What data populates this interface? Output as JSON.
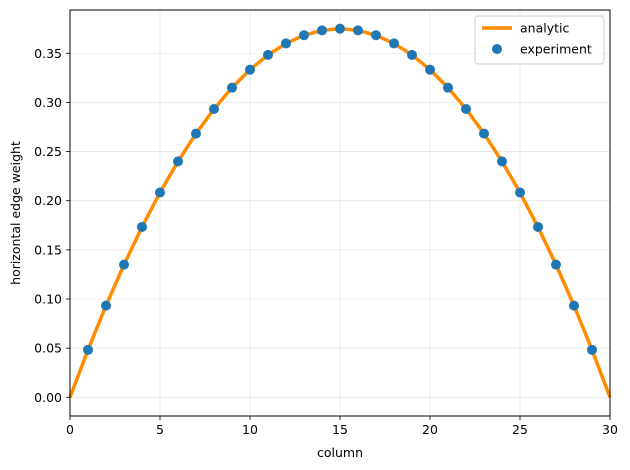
{
  "chart_data": {
    "type": "line",
    "xlabel": "column",
    "ylabel": "horizontal edge weight",
    "xlim": [
      0,
      30
    ],
    "ylim": [
      -0.019,
      0.394
    ],
    "xticks": [
      0,
      5,
      10,
      15,
      20,
      25,
      30
    ],
    "yticks": [
      0.0,
      0.05,
      0.1,
      0.15,
      0.2,
      0.25,
      0.3,
      0.35
    ],
    "grid": true,
    "legend_position": "top-right",
    "colors": {
      "analytic": "#ff8c00",
      "experiment": "#1f77b4"
    },
    "series": [
      {
        "name": "analytic",
        "kind": "line",
        "x": [
          0,
          1,
          2,
          3,
          4,
          5,
          6,
          7,
          8,
          9,
          10,
          11,
          12,
          13,
          14,
          15,
          16,
          17,
          18,
          19,
          20,
          21,
          22,
          23,
          24,
          25,
          26,
          27,
          28,
          29,
          30
        ],
        "y": [
          0.0,
          0.0483,
          0.0933,
          0.135,
          0.1733,
          0.2083,
          0.24,
          0.2683,
          0.2933,
          0.315,
          0.3333,
          0.3483,
          0.36,
          0.3683,
          0.3733,
          0.375,
          0.3733,
          0.3683,
          0.36,
          0.3483,
          0.3333,
          0.315,
          0.2933,
          0.2683,
          0.24,
          0.2083,
          0.1733,
          0.135,
          0.0933,
          0.0483,
          0.0
        ]
      },
      {
        "name": "experiment",
        "kind": "scatter",
        "x": [
          1,
          2,
          3,
          4,
          5,
          6,
          7,
          8,
          9,
          10,
          11,
          12,
          13,
          14,
          15,
          16,
          17,
          18,
          19,
          20,
          21,
          22,
          23,
          24,
          25,
          26,
          27,
          28,
          29
        ],
        "y": [
          0.0483,
          0.0933,
          0.135,
          0.1733,
          0.2083,
          0.24,
          0.2683,
          0.2933,
          0.315,
          0.3333,
          0.3483,
          0.36,
          0.3683,
          0.3733,
          0.375,
          0.3733,
          0.3683,
          0.36,
          0.3483,
          0.3333,
          0.315,
          0.2933,
          0.2683,
          0.24,
          0.2083,
          0.1733,
          0.135,
          0.0933,
          0.0483
        ]
      }
    ]
  }
}
